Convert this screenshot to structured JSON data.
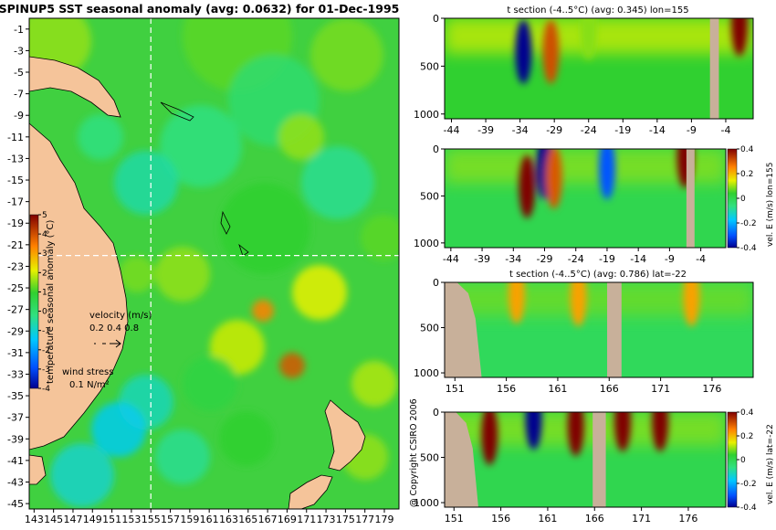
{
  "copyright": "@ Copyright CSIRO 2006",
  "chart_data": [
    {
      "type": "heatmap",
      "title": "SPINUP5 SST seasonal anomaly (avg: 0.0632) for 01-Dec-1995",
      "x_ticks": [
        "143",
        "145",
        "147",
        "149",
        "151",
        "153",
        "155",
        "157",
        "159",
        "161",
        "163",
        "165",
        "167",
        "169",
        "171",
        "173",
        "175",
        "177",
        "179"
      ],
      "y_ticks": [
        "-1",
        "-3",
        "-5",
        "-7",
        "-9",
        "-11",
        "-13",
        "-15",
        "-17",
        "-19",
        "-21",
        "-23",
        "-25",
        "-27",
        "-29",
        "-31",
        "-33",
        "-35",
        "-37",
        "-39",
        "-41",
        "-43",
        "-45"
      ],
      "xlim": [
        142.5,
        180.5
      ],
      "ylim": [
        -45.5,
        0
      ],
      "section_lines": {
        "lon": 155,
        "lat": -22
      },
      "colorbar": {
        "label": "temperature seasonal anomaly (°C)",
        "ticks": [
          "5",
          "4",
          "3",
          "2",
          "1",
          "0",
          "-1",
          "-2",
          "-3",
          "-4"
        ],
        "range": [
          -4,
          5
        ]
      },
      "velocity_legend": {
        "title": "velocity (m/s)",
        "values": "0.2 0.4 0.8"
      },
      "wind_legend": {
        "title": "wind stress",
        "value": "0.1 N/m²"
      }
    },
    {
      "type": "heatmap",
      "title": "t section (-4..5°C) (avg: 0.345) lon=155",
      "x_ticks": [
        "-44",
        "-39",
        "-34",
        "-29",
        "-24",
        "-19",
        "-14",
        "-9",
        "-4"
      ],
      "y_ticks": [
        "0",
        "500",
        "1000"
      ],
      "xlim": [
        -45,
        0
      ],
      "ylim": [
        1050,
        0
      ],
      "anomalies": [
        {
          "x": -33.5,
          "depth": 350,
          "value": -4
        },
        {
          "x": -29.5,
          "depth": 350,
          "value": 4
        },
        {
          "x": -24,
          "depth": 100,
          "value": 1.5
        },
        {
          "x": -2,
          "depth": 60,
          "value": 5
        }
      ]
    },
    {
      "type": "heatmap",
      "title": "",
      "x_ticks": [
        "-44",
        "-39",
        "-34",
        "-29",
        "-24",
        "-19",
        "-14",
        "-9",
        "-4"
      ],
      "y_ticks": [
        "0",
        "500",
        "1000"
      ],
      "xlim": [
        -45,
        0
      ],
      "ylim": [
        1050,
        0
      ],
      "colorbar": {
        "label": "vel. E (m/s) lon=155",
        "ticks": [
          "0.4",
          "0.2",
          "0",
          "-0.2",
          "-0.4"
        ],
        "range": [
          -0.4,
          0.4
        ]
      },
      "anomalies": [
        {
          "x": -31.8,
          "depth": 400,
          "value": 0.4
        },
        {
          "x": -29,
          "depth": 200,
          "value": -0.4
        },
        {
          "x": -27.5,
          "depth": 300,
          "value": 0.3
        },
        {
          "x": -19,
          "depth": 200,
          "value": -0.3
        },
        {
          "x": -6.5,
          "depth": 80,
          "value": 0.4
        }
      ]
    },
    {
      "type": "heatmap",
      "title": "t section (-4..5°C) (avg: 0.786) lat=-22",
      "x_ticks": [
        "151",
        "156",
        "161",
        "166",
        "171",
        "176"
      ],
      "y_ticks": [
        "0",
        "500",
        "1000"
      ],
      "xlim": [
        150,
        180
      ],
      "ylim": [
        1050,
        0
      ],
      "anomalies": [
        {
          "x": 157,
          "depth": 120,
          "value": 3
        },
        {
          "x": 163,
          "depth": 150,
          "value": 3
        },
        {
          "x": 174,
          "depth": 150,
          "value": 3
        }
      ]
    },
    {
      "type": "heatmap",
      "title": "",
      "x_ticks": [
        "151",
        "156",
        "161",
        "166",
        "171",
        "176"
      ],
      "y_ticks": [
        "0",
        "500",
        "1000"
      ],
      "xlim": [
        150,
        180
      ],
      "ylim": [
        1050,
        0
      ],
      "colorbar": {
        "label": "vel. E (m/s) lat=-22",
        "ticks": [
          "0.4",
          "0.2",
          "0",
          "-0.2",
          "-0.4"
        ],
        "range": [
          -0.4,
          0.4
        ]
      },
      "anomalies": [
        {
          "x": 154.8,
          "depth": 250,
          "value": 0.4
        },
        {
          "x": 159.5,
          "depth": 80,
          "value": -0.4
        },
        {
          "x": 164,
          "depth": 150,
          "value": 0.4
        },
        {
          "x": 169,
          "depth": 100,
          "value": 0.4
        },
        {
          "x": 173,
          "depth": 100,
          "value": 0.4
        }
      ]
    }
  ]
}
